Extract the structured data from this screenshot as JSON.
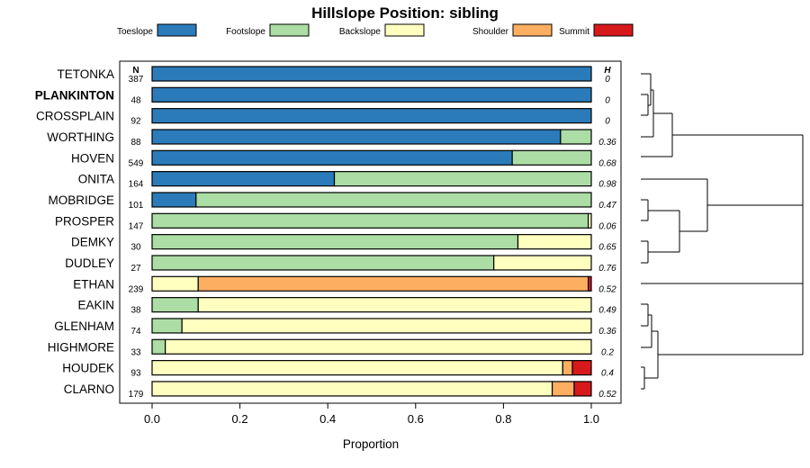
{
  "chart_data": {
    "type": "bar",
    "orientation": "horizontal",
    "stacked": true,
    "title": "Hillslope Position: sibling",
    "xlabel": "Proportion",
    "ylabel": "",
    "xlim": [
      0,
      1
    ],
    "xticks": [
      "0.0",
      "0.2",
      "0.4",
      "0.6",
      "0.8",
      "1.0"
    ],
    "n_header": "N",
    "h_header": "H",
    "legend_position": "top",
    "series": [
      {
        "name": "Toeslope",
        "color": "#2b7bba"
      },
      {
        "name": "Footslope",
        "color": "#abdda4"
      },
      {
        "name": "Backslope",
        "color": "#ffffbf"
      },
      {
        "name": "Shoulder",
        "color": "#fdae61"
      },
      {
        "name": "Summit",
        "color": "#d7191c"
      }
    ],
    "rows": [
      {
        "label": "TETONKA",
        "n": "387",
        "h": "0",
        "values": [
          1.0,
          0,
          0,
          0,
          0
        ]
      },
      {
        "label": "PLANKINTON",
        "n": "48",
        "h": "0",
        "bold": true,
        "values": [
          1.0,
          0,
          0,
          0,
          0
        ]
      },
      {
        "label": "CROSSPLAIN",
        "n": "92",
        "h": "0",
        "values": [
          1.0,
          0,
          0,
          0,
          0
        ]
      },
      {
        "label": "WORTHING",
        "n": "88",
        "h": "0.36",
        "values": [
          0.93,
          0.07,
          0,
          0,
          0
        ]
      },
      {
        "label": "HOVEN",
        "n": "549",
        "h": "0.68",
        "values": [
          0.82,
          0.18,
          0,
          0,
          0
        ]
      },
      {
        "label": "ONITA",
        "n": "164",
        "h": "0.98",
        "values": [
          0.415,
          0.585,
          0,
          0,
          0
        ]
      },
      {
        "label": "MOBRIDGE",
        "n": "101",
        "h": "0.47",
        "values": [
          0.1,
          0.9,
          0,
          0,
          0
        ]
      },
      {
        "label": "PROSPER",
        "n": "147",
        "h": "0.06",
        "values": [
          0,
          0.993,
          0.007,
          0,
          0
        ]
      },
      {
        "label": "DEMKY",
        "n": "30",
        "h": "0.65",
        "values": [
          0,
          0.833,
          0.167,
          0,
          0
        ]
      },
      {
        "label": "DUDLEY",
        "n": "27",
        "h": "0.76",
        "values": [
          0,
          0.778,
          0.222,
          0,
          0
        ]
      },
      {
        "label": "ETHAN",
        "n": "239",
        "h": "0.52",
        "values": [
          0,
          0,
          0.105,
          0.888,
          0.007
        ]
      },
      {
        "label": "EAKIN",
        "n": "38",
        "h": "0.49",
        "values": [
          0,
          0.105,
          0.895,
          0,
          0
        ]
      },
      {
        "label": "GLENHAM",
        "n": "74",
        "h": "0.36",
        "values": [
          0,
          0.068,
          0.932,
          0,
          0
        ]
      },
      {
        "label": "HIGHMORE",
        "n": "33",
        "h": "0.2",
        "values": [
          0,
          0.03,
          0.97,
          0,
          0
        ]
      },
      {
        "label": "HOUDEK",
        "n": "93",
        "h": "0.4",
        "values": [
          0,
          0,
          0.935,
          0.022,
          0.043
        ]
      },
      {
        "label": "CLARNO",
        "n": "179",
        "h": "0.52",
        "values": [
          0,
          0,
          0.911,
          0.05,
          0.039
        ]
      }
    ]
  }
}
